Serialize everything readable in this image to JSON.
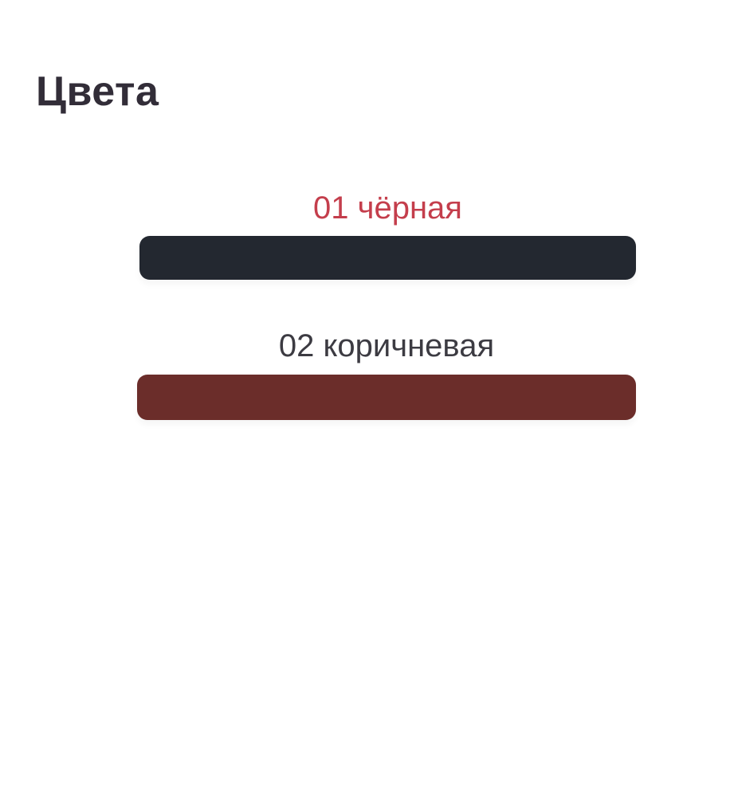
{
  "page": {
    "background_color": "#ffffff"
  },
  "colors_section": {
    "title": "Цвета",
    "title_color": "#322d38",
    "options": [
      {
        "label": "01 чёрная",
        "label_color": "#c43e4c",
        "swatch_color": "#232830",
        "selected": true
      },
      {
        "label": "02 коричневая",
        "label_color": "#3c3b42",
        "swatch_color": "#6b2d2a",
        "selected": false
      }
    ]
  }
}
